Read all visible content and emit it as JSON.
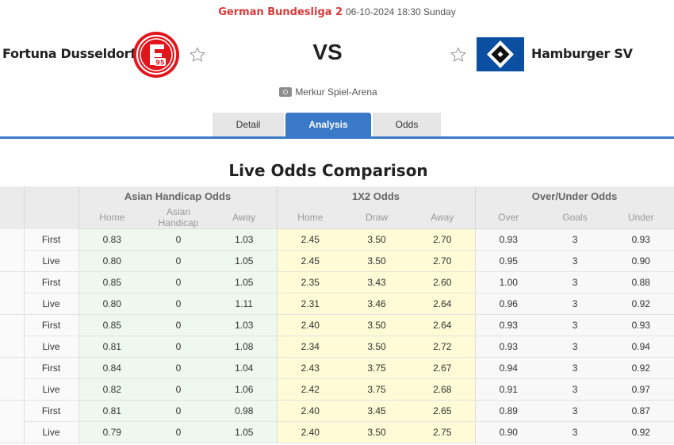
{
  "match": {
    "league": "German Bundesliga 2",
    "datetime": "06-10-2024 18:30 Sunday",
    "home_team": "Fortuna Dusseldorf",
    "home_logo_text": "95",
    "away_team": "Hamburger SV",
    "vs_label": "VS",
    "venue": "Merkur Spiel-Arena",
    "icons": {
      "favorite": "star-outline-icon",
      "venue": "stadium-icon"
    }
  },
  "tabs": [
    {
      "label": "Detail",
      "active": false
    },
    {
      "label": "Analysis",
      "active": true
    },
    {
      "label": "Odds",
      "active": false
    }
  ],
  "section_title": "Live Odds Comparison",
  "colors": {
    "accent": "#3a78c8",
    "league": "#d93a3a",
    "asian_bg": "#eef8ee",
    "x12_bg": "#fefbd6"
  },
  "table": {
    "groups": [
      "Asian Handicap Odds",
      "1X2 Odds",
      "Over/Under Odds"
    ],
    "subheaders": [
      "Home",
      "Asian Handicap",
      "Away",
      "Home",
      "Draw",
      "Away",
      "Over",
      "Goals",
      "Under"
    ],
    "bookmakers": [
      {
        "rows": [
          {
            "type": "First",
            "values": [
              "0.83",
              "0",
              "1.03",
              "2.45",
              "3.50",
              "2.70",
              "0.93",
              "3",
              "0.93"
            ]
          },
          {
            "type": "Live",
            "values": [
              "0.80",
              "0",
              "1.05",
              "2.45",
              "3.50",
              "2.70",
              "0.95",
              "3",
              "0.90"
            ]
          }
        ]
      },
      {
        "rows": [
          {
            "type": "First",
            "values": [
              "0.85",
              "0",
              "1.05",
              "2.35",
              "3.43",
              "2.60",
              "1.00",
              "3",
              "0.88"
            ]
          },
          {
            "type": "Live",
            "values": [
              "0.80",
              "0",
              "1.11",
              "2.31",
              "3.46",
              "2.64",
              "0.96",
              "3",
              "0.92"
            ]
          }
        ]
      },
      {
        "rows": [
          {
            "type": "First",
            "values": [
              "0.85",
              "0",
              "1.03",
              "2.40",
              "3.50",
              "2.64",
              "0.93",
              "3",
              "0.93"
            ]
          },
          {
            "type": "Live",
            "values": [
              "0.81",
              "0",
              "1.08",
              "2.34",
              "3.50",
              "2.72",
              "0.93",
              "3",
              "0.94"
            ]
          }
        ]
      },
      {
        "rows": [
          {
            "type": "First",
            "values": [
              "0.84",
              "0",
              "1.04",
              "2.43",
              "3.75",
              "2.67",
              "0.94",
              "3",
              "0.92"
            ]
          },
          {
            "type": "Live",
            "values": [
              "0.82",
              "0",
              "1.06",
              "2.42",
              "3.75",
              "2.68",
              "0.91",
              "3",
              "0.97"
            ]
          }
        ]
      },
      {
        "rows": [
          {
            "type": "First",
            "values": [
              "0.81",
              "0",
              "0.98",
              "2.40",
              "3.45",
              "2.65",
              "0.89",
              "3",
              "0.87"
            ]
          },
          {
            "type": "Live",
            "values": [
              "0.79",
              "0",
              "1.05",
              "2.40",
              "3.50",
              "2.75",
              "0.90",
              "3",
              "0.92"
            ]
          }
        ]
      }
    ]
  }
}
